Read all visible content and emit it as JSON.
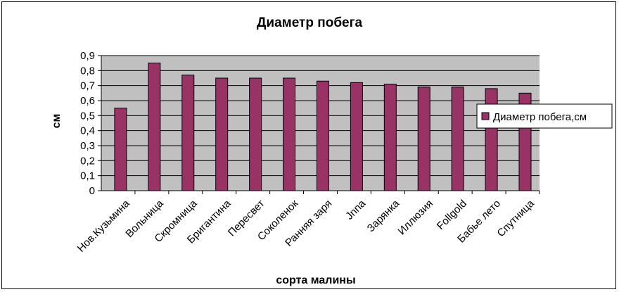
{
  "chart_data": {
    "type": "bar",
    "title": "Диаметр побега",
    "xlabel": "сорта малины",
    "ylabel": "см",
    "categories": [
      "Нов.Кузьмина",
      "Вольница",
      "Скромница",
      "Бригантина",
      "Пересвет",
      "Соколенок",
      "Ранняя заря",
      "Jnna",
      "Зарянка",
      "Иллюзия",
      "Follgold",
      "Бабье лето",
      "Спутница"
    ],
    "series": [
      {
        "name": "Диаметр побега,см",
        "values": [
          0.55,
          0.85,
          0.77,
          0.75,
          0.75,
          0.75,
          0.73,
          0.72,
          0.71,
          0.69,
          0.69,
          0.68,
          0.65
        ]
      }
    ],
    "yticks": [
      "0",
      "0,1",
      "0,2",
      "0,3",
      "0,4",
      "0,5",
      "0,6",
      "0,7",
      "0,8",
      "0,9"
    ],
    "ylim": [
      0,
      0.9
    ],
    "grid": true,
    "legend_position": "right",
    "colors": {
      "bar": "#993366",
      "plot_background": "#c0c0c0",
      "gridline": "#000000"
    }
  }
}
